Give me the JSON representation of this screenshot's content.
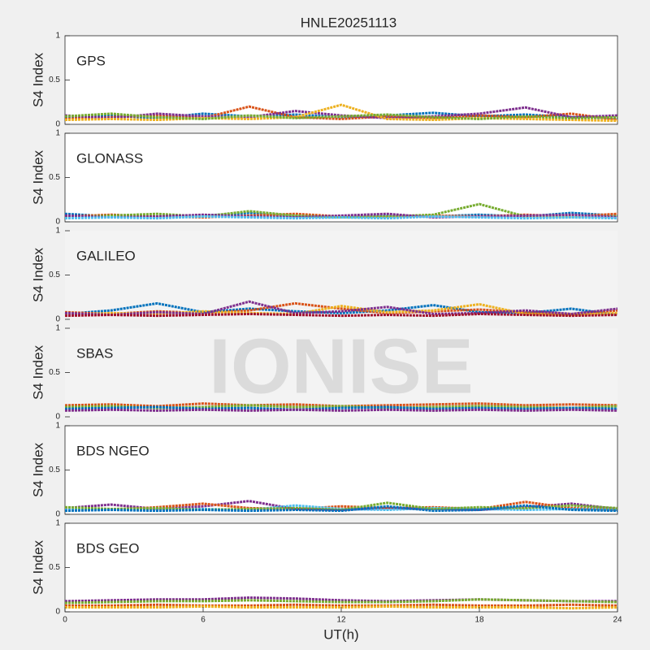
{
  "figure": {
    "title": "HNLE20251113",
    "xlabel": "UT(h)",
    "watermark": "IONISE"
  },
  "chart_data": [
    {
      "type": "line",
      "label": "GPS",
      "ylabel": "S4 Index",
      "xlim": [
        0,
        24
      ],
      "ylim": [
        0,
        1
      ],
      "yticks": [
        0,
        0.5,
        1
      ],
      "x": [
        0,
        2,
        4,
        6,
        8,
        10,
        12,
        14,
        16,
        18,
        20,
        22,
        24
      ],
      "series": [
        {
          "color": "#0072BD",
          "values": [
            0.08,
            0.1,
            0.07,
            0.12,
            0.09,
            0.11,
            0.08,
            0.1,
            0.13,
            0.09,
            0.11,
            0.08,
            0.07
          ]
        },
        {
          "color": "#D95319",
          "values": [
            0.06,
            0.08,
            0.1,
            0.07,
            0.2,
            0.08,
            0.06,
            0.09,
            0.07,
            0.1,
            0.08,
            0.12,
            0.05
          ]
        },
        {
          "color": "#7E2F8E",
          "values": [
            0.1,
            0.07,
            0.12,
            0.09,
            0.08,
            0.15,
            0.1,
            0.07,
            0.09,
            0.12,
            0.19,
            0.08,
            0.1
          ]
        },
        {
          "color": "#EDB120",
          "values": [
            0.05,
            0.06,
            0.05,
            0.07,
            0.06,
            0.08,
            0.22,
            0.06,
            0.05,
            0.07,
            0.06,
            0.05,
            0.04
          ]
        },
        {
          "color": "#77AC30",
          "values": [
            0.09,
            0.12,
            0.08,
            0.06,
            0.1,
            0.07,
            0.09,
            0.11,
            0.08,
            0.06,
            0.09,
            0.07,
            0.08
          ]
        }
      ]
    },
    {
      "type": "line",
      "label": "GLONASS",
      "ylabel": "S4 Index",
      "xlim": [
        0,
        24
      ],
      "ylim": [
        0,
        1
      ],
      "yticks": [
        0,
        0.5,
        1
      ],
      "x": [
        0,
        2,
        4,
        6,
        8,
        10,
        12,
        14,
        16,
        18,
        20,
        22,
        24
      ],
      "series": [
        {
          "color": "#0072BD",
          "values": [
            0.09,
            0.06,
            0.05,
            0.07,
            0.1,
            0.06,
            0.05,
            0.07,
            0.06,
            0.08,
            0.06,
            0.1,
            0.07
          ]
        },
        {
          "color": "#D95319",
          "values": [
            0.06,
            0.08,
            0.06,
            0.05,
            0.07,
            0.09,
            0.06,
            0.05,
            0.07,
            0.06,
            0.08,
            0.06,
            0.09
          ]
        },
        {
          "color": "#77AC30",
          "values": [
            0.05,
            0.07,
            0.09,
            0.06,
            0.12,
            0.07,
            0.05,
            0.06,
            0.08,
            0.2,
            0.06,
            0.05,
            0.06
          ]
        },
        {
          "color": "#7E2F8E",
          "values": [
            0.07,
            0.05,
            0.06,
            0.08,
            0.06,
            0.05,
            0.07,
            0.09,
            0.05,
            0.06,
            0.07,
            0.08,
            0.05
          ]
        },
        {
          "color": "#4DBEEE",
          "values": [
            0.04,
            0.05,
            0.04,
            0.06,
            0.05,
            0.04,
            0.05,
            0.04,
            0.06,
            0.05,
            0.04,
            0.05,
            0.04
          ]
        }
      ]
    },
    {
      "type": "line",
      "label": "GALILEO",
      "ylabel": "S4 Index",
      "xlim": [
        0,
        24
      ],
      "ylim": [
        0,
        1
      ],
      "yticks": [
        0,
        0.5,
        1
      ],
      "x": [
        0,
        2,
        4,
        6,
        8,
        10,
        12,
        14,
        16,
        18,
        20,
        22,
        24
      ],
      "series": [
        {
          "color": "#0072BD",
          "values": [
            0.06,
            0.1,
            0.18,
            0.08,
            0.12,
            0.09,
            0.07,
            0.1,
            0.16,
            0.08,
            0.07,
            0.12,
            0.05
          ]
        },
        {
          "color": "#D95319",
          "values": [
            0.08,
            0.06,
            0.09,
            0.07,
            0.1,
            0.18,
            0.12,
            0.07,
            0.09,
            0.11,
            0.08,
            0.06,
            0.1
          ]
        },
        {
          "color": "#EDB120",
          "values": [
            0.05,
            0.07,
            0.06,
            0.09,
            0.07,
            0.06,
            0.15,
            0.08,
            0.1,
            0.17,
            0.06,
            0.05,
            0.07
          ]
        },
        {
          "color": "#7E2F8E",
          "values": [
            0.07,
            0.05,
            0.08,
            0.06,
            0.2,
            0.07,
            0.09,
            0.14,
            0.06,
            0.07,
            0.1,
            0.06,
            0.12
          ]
        },
        {
          "color": "#A2142F",
          "values": [
            0.04,
            0.05,
            0.04,
            0.05,
            0.06,
            0.05,
            0.04,
            0.05,
            0.04,
            0.06,
            0.05,
            0.04,
            0.05
          ]
        }
      ]
    },
    {
      "type": "line",
      "label": "SBAS",
      "ylabel": "S4 Index",
      "xlim": [
        0,
        24
      ],
      "ylim": [
        0,
        1
      ],
      "yticks": [
        0,
        0.5,
        1
      ],
      "x": [
        0,
        2,
        4,
        6,
        8,
        10,
        12,
        14,
        16,
        18,
        20,
        22,
        24
      ],
      "series": [
        {
          "color": "#D95319",
          "values": [
            0.13,
            0.14,
            0.12,
            0.15,
            0.13,
            0.14,
            0.12,
            0.13,
            0.14,
            0.15,
            0.13,
            0.14,
            0.13
          ]
        },
        {
          "color": "#77AC30",
          "values": [
            0.11,
            0.12,
            0.1,
            0.11,
            0.13,
            0.11,
            0.12,
            0.1,
            0.11,
            0.12,
            0.11,
            0.1,
            0.12
          ]
        },
        {
          "color": "#0072BD",
          "values": [
            0.09,
            0.1,
            0.11,
            0.09,
            0.1,
            0.08,
            0.1,
            0.11,
            0.09,
            0.1,
            0.09,
            0.1,
            0.09
          ]
        },
        {
          "color": "#7E2F8E",
          "values": [
            0.07,
            0.08,
            0.07,
            0.08,
            0.07,
            0.08,
            0.07,
            0.08,
            0.07,
            0.08,
            0.07,
            0.08,
            0.07
          ]
        }
      ]
    },
    {
      "type": "line",
      "label": "BDS NGEO",
      "ylabel": "S4 Index",
      "xlim": [
        0,
        24
      ],
      "ylim": [
        0,
        1
      ],
      "yticks": [
        0,
        0.5,
        1
      ],
      "x": [
        0,
        2,
        4,
        6,
        8,
        10,
        12,
        14,
        16,
        18,
        20,
        22,
        24
      ],
      "series": [
        {
          "color": "#7E2F8E",
          "values": [
            0.07,
            0.11,
            0.06,
            0.09,
            0.15,
            0.06,
            0.05,
            0.07,
            0.06,
            0.05,
            0.08,
            0.12,
            0.06
          ]
        },
        {
          "color": "#D95319",
          "values": [
            0.06,
            0.05,
            0.08,
            0.12,
            0.07,
            0.06,
            0.09,
            0.07,
            0.08,
            0.06,
            0.14,
            0.07,
            0.05
          ]
        },
        {
          "color": "#4DBEEE",
          "values": [
            0.05,
            0.06,
            0.05,
            0.06,
            0.05,
            0.1,
            0.06,
            0.05,
            0.07,
            0.06,
            0.05,
            0.06,
            0.05
          ]
        },
        {
          "color": "#77AC30",
          "values": [
            0.08,
            0.06,
            0.07,
            0.05,
            0.06,
            0.07,
            0.05,
            0.13,
            0.06,
            0.08,
            0.07,
            0.1,
            0.07
          ]
        },
        {
          "color": "#0072BD",
          "values": [
            0.04,
            0.05,
            0.04,
            0.05,
            0.04,
            0.05,
            0.04,
            0.09,
            0.04,
            0.05,
            0.1,
            0.05,
            0.04
          ]
        }
      ]
    },
    {
      "type": "line",
      "label": "BDS GEO",
      "ylabel": "S4 Index",
      "xlabel_shown": true,
      "xlim": [
        0,
        24
      ],
      "ylim": [
        0,
        1
      ],
      "yticks": [
        0,
        0.5,
        1
      ],
      "xticks": [
        0,
        6,
        12,
        18,
        24
      ],
      "x": [
        0,
        2,
        4,
        6,
        8,
        10,
        12,
        14,
        16,
        18,
        20,
        22,
        24
      ],
      "series": [
        {
          "color": "#7E2F8E",
          "values": [
            0.12,
            0.13,
            0.14,
            0.14,
            0.16,
            0.15,
            0.13,
            0.12,
            0.13,
            0.14,
            0.13,
            0.12,
            0.12
          ]
        },
        {
          "color": "#77AC30",
          "values": [
            0.1,
            0.11,
            0.12,
            0.12,
            0.13,
            0.12,
            0.11,
            0.11,
            0.12,
            0.14,
            0.13,
            0.12,
            0.11
          ]
        },
        {
          "color": "#D95319",
          "values": [
            0.07,
            0.07,
            0.08,
            0.07,
            0.07,
            0.08,
            0.07,
            0.07,
            0.08,
            0.07,
            0.07,
            0.08,
            0.07
          ]
        },
        {
          "color": "#EDB120",
          "values": [
            0.05,
            0.05,
            0.05,
            0.06,
            0.05,
            0.05,
            0.05,
            0.06,
            0.05,
            0.05,
            0.05,
            0.04,
            0.05
          ]
        }
      ]
    }
  ]
}
